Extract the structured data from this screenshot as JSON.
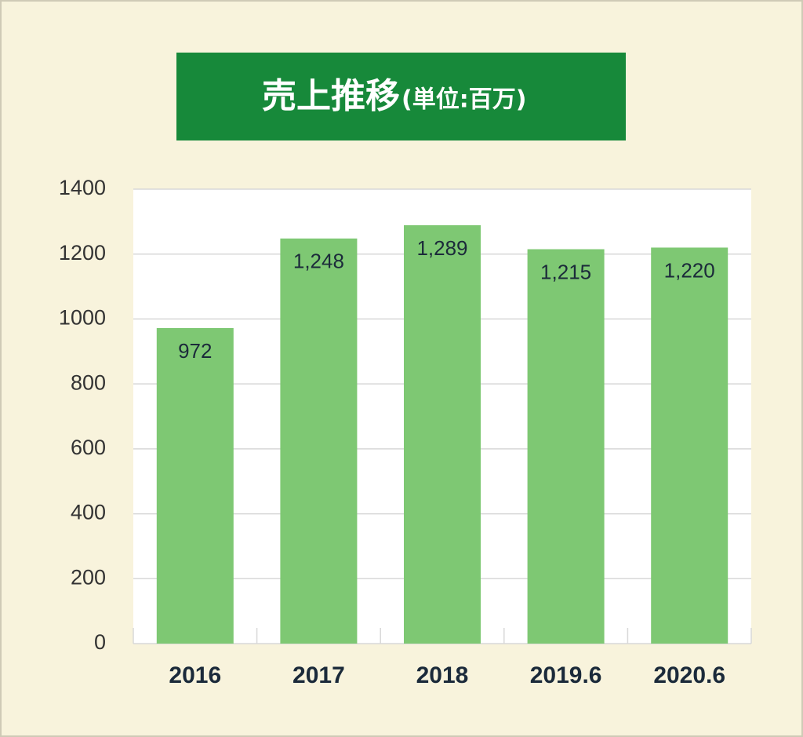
{
  "chart_data": {
    "type": "bar",
    "title": "売上推移",
    "subtitle": "(単位:百万)",
    "categories": [
      "2016",
      "2017",
      "2018",
      "2019.6",
      "2020.6"
    ],
    "values": [
      972,
      1248,
      1289,
      1215,
      1220
    ],
    "value_labels": [
      "972",
      "1,248",
      "1,289",
      "1,215",
      "1,220"
    ],
    "color": "#7ec873",
    "ylim": [
      0,
      1400
    ],
    "yticks": [
      0,
      200,
      400,
      600,
      800,
      1000,
      1200,
      1400
    ],
    "grid": true
  }
}
